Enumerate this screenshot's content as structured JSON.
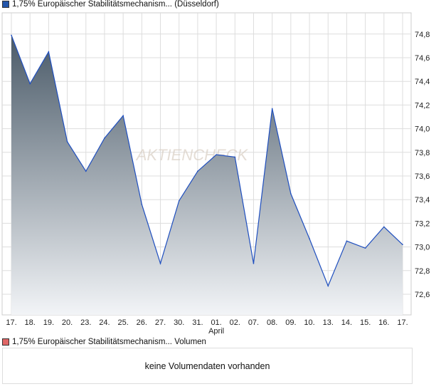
{
  "colors": {
    "line": "#1f4fbf",
    "price_swatch": "#2255aa",
    "volume_swatch": "#e06666",
    "area_top": "#4a5a68",
    "area_bottom": "#f2f4f7"
  },
  "watermark": "AKTIENCHECK",
  "chart_data": {
    "type": "area",
    "title": "1,75% Europäischer Stabilitätsmechanism... (Düsseldorf)",
    "categories": [
      "17.",
      "18.",
      "19.",
      "20.",
      "23.",
      "24.",
      "25.",
      "26.",
      "27.",
      "30.",
      "31.",
      "01.",
      "02.",
      "07.",
      "08.",
      "09.",
      "10.",
      "13.",
      "14.",
      "15.",
      "16.",
      "17."
    ],
    "month_label": "April",
    "values": [
      74.79,
      74.38,
      74.65,
      73.89,
      73.64,
      73.92,
      74.11,
      73.36,
      72.86,
      73.39,
      73.64,
      73.78,
      73.76,
      72.86,
      74.17,
      73.45,
      73.07,
      72.67,
      73.05,
      72.99,
      73.17,
      73.02
    ],
    "yticks": [
      "72,6",
      "72,8",
      "73,0",
      "73,2",
      "73,4",
      "73,6",
      "73,8",
      "74,0",
      "74,2",
      "74,4",
      "74,6",
      "74,8"
    ],
    "ylim": [
      72.45,
      74.98
    ],
    "grid": true,
    "legend": "top-left"
  },
  "volume": {
    "legend": "1,75% Europäischer Stabilitätsmechanism... Volumen",
    "message": "keine Volumendaten vorhanden"
  }
}
